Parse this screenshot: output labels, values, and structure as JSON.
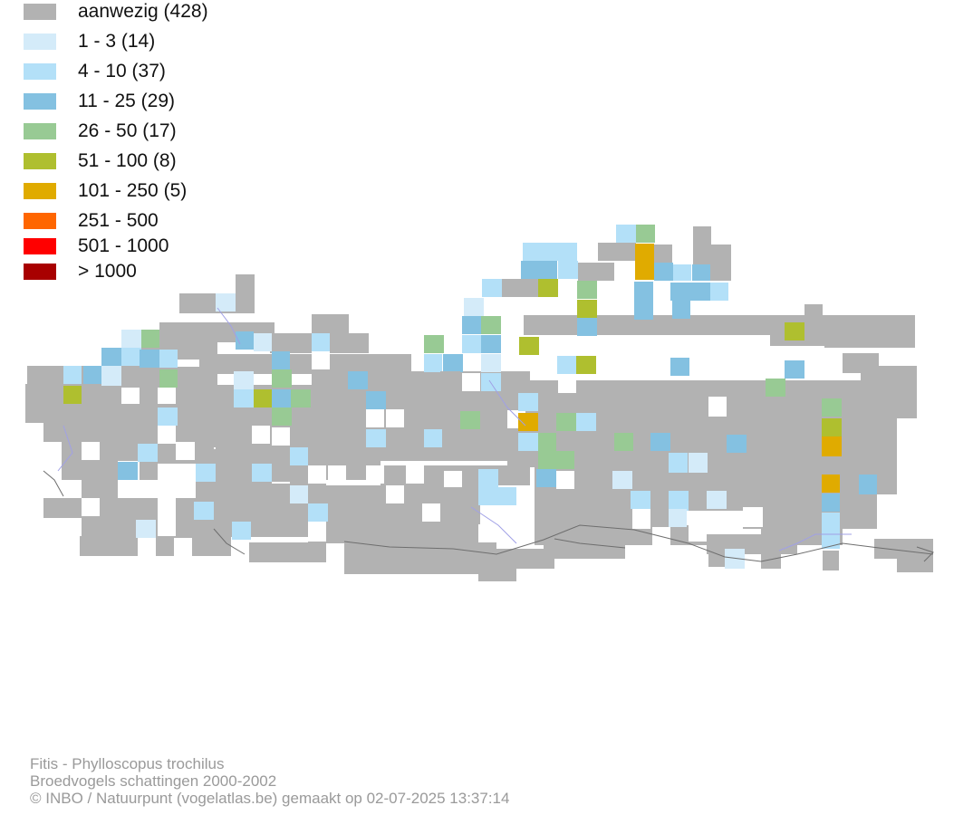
{
  "legend": {
    "items": [
      {
        "label": "aanwezig (428)",
        "color": "#b2b2b2"
      },
      {
        "label": "1 - 3 (14)",
        "color": "#d4ebf9"
      },
      {
        "label": "4 - 10 (37)",
        "color": "#b3e0f8"
      },
      {
        "label": "11 - 25 (29)",
        "color": "#84c1e1"
      },
      {
        "label": "26 - 50 (17)",
        "color": "#98ca94"
      },
      {
        "label": "51 - 100 (8)",
        "color": "#afbf2f"
      },
      {
        "label": "101 - 250 (5)",
        "color": "#e0ab00"
      },
      {
        "label": "251 - 500",
        "color": "#ff6600"
      },
      {
        "label": "501 - 1000",
        "color": "#ff0000"
      },
      {
        "label": "> 1000",
        "color": "#a80000"
      }
    ]
  },
  "footer": {
    "species": "Fitis - Phylloscopus trochilus",
    "dataset": "Broedvogels schattingen 2000-2002",
    "credit": "© INBO / Natuurpunt (vogelatlas.be) gemaakt op 02-07-2025 13:37:14"
  },
  "colors": {
    "border": "#6e6e6e",
    "river": "#a0a0e6"
  }
}
